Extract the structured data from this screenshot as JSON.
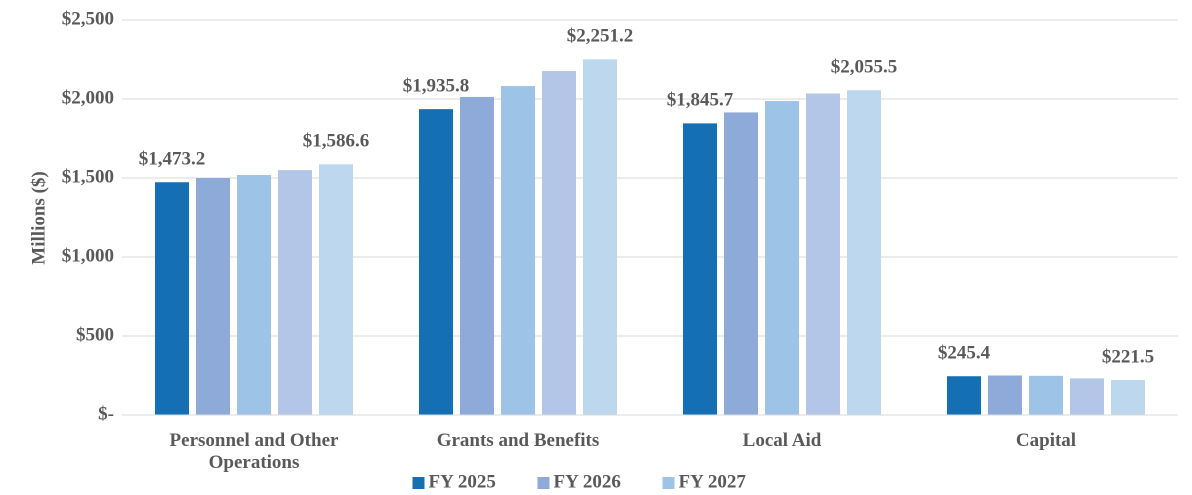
{
  "chart_data": {
    "type": "bar",
    "categories": [
      "Personnel and Other Operations",
      "Grants and Benefits",
      "Local Aid",
      "Capital"
    ],
    "ylabel": "Millions ($)",
    "series": [
      {
        "name": "FY 2025",
        "color": "#156fb5",
        "values": [
          1473.2,
          1935.8,
          1845.7,
          245.4
        ],
        "value_labels": [
          "$1,473.2",
          "$1,935.8",
          "$1,845.7",
          "$245.4"
        ]
      },
      {
        "name": "FY 2026",
        "color": "#8eaad8",
        "values": [
          1500,
          2013,
          1915,
          250
        ]
      },
      {
        "name": "FY 2027",
        "color": "#9dc3e6",
        "values": [
          1519,
          2082,
          1987,
          248
        ]
      },
      {
        "color": "#b4c6e7",
        "values": [
          1550,
          2177,
          2035,
          232
        ]
      },
      {
        "color": "#bdd7ee",
        "values": [
          1586.6,
          2251.2,
          2055.5,
          221.5
        ],
        "value_labels": [
          "$1,586.6",
          "$2,251.2",
          "$2,055.5",
          "$221.5"
        ]
      }
    ],
    "ylim": [
      0,
      2500
    ],
    "yticks": [
      {
        "value": 0,
        "label": "$-"
      },
      {
        "value": 500,
        "label": "$500"
      },
      {
        "value": 1000,
        "label": "$1,000"
      },
      {
        "value": 1500,
        "label": "$1,500"
      },
      {
        "value": 2000,
        "label": "$2,000"
      },
      {
        "value": 2500,
        "label": "$2,500"
      }
    ],
    "grid": true,
    "legend": "bottom"
  }
}
